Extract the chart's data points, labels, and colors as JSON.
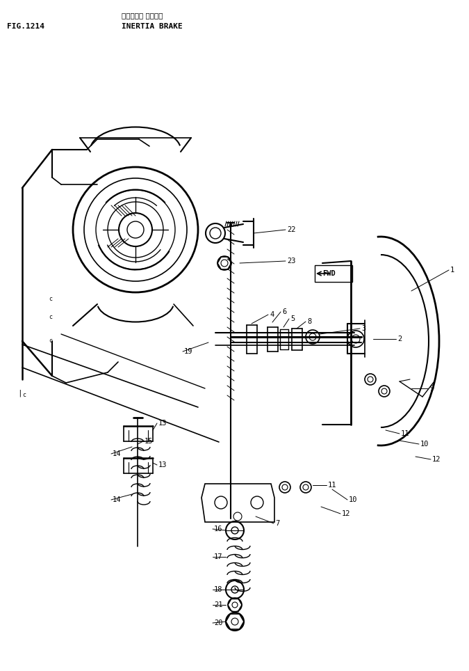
{
  "fig_label": "FIG.1214",
  "title_japanese": "イナーシャ ブレーキ",
  "title_english": "INERTIA BRAKE",
  "bg_color": "#ffffff",
  "line_color": "#000000",
  "figsize": [
    6.75,
    9.64
  ],
  "dpi": 100
}
